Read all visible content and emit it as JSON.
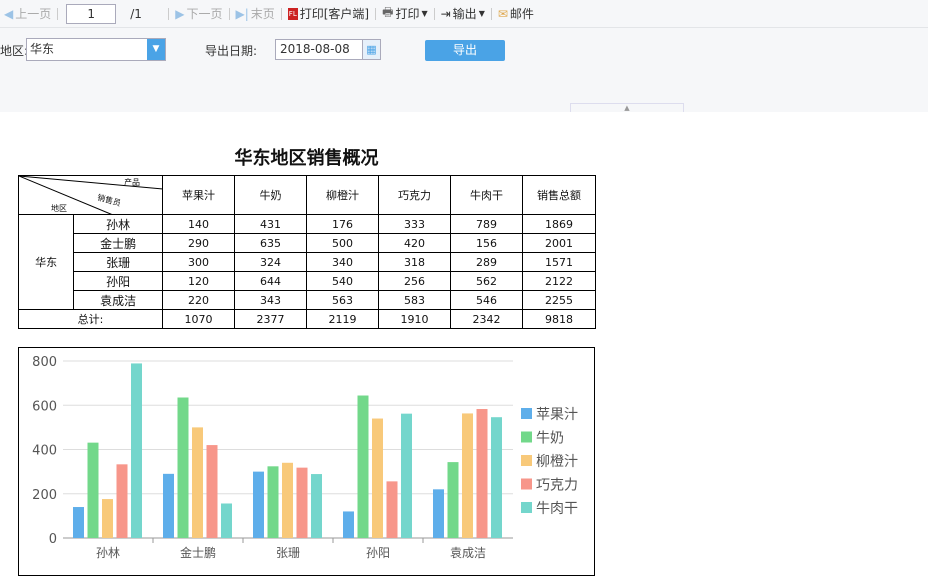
{
  "toolbar": {
    "prev": "上一页",
    "page": "1",
    "total": "/1",
    "next": "下一页",
    "last": "末页",
    "print_client": "打印[客户端]",
    "print": "打印",
    "export": "输出",
    "mail": "邮件"
  },
  "params": {
    "region_label": "地区:",
    "region_value": "华东",
    "date_label": "导出日期:",
    "date_value": "2018-08-08",
    "export_button": "导出"
  },
  "report": {
    "title": "华东地区销售概况",
    "corner": {
      "product": "产品",
      "salesperson": "销售员",
      "region": "地区"
    },
    "columns": [
      "苹果汁",
      "牛奶",
      "柳橙汁",
      "巧克力",
      "牛肉干",
      "销售总额"
    ],
    "region": "华东",
    "rows": [
      {
        "name": "孙林",
        "values": [
          "140",
          "431",
          "176",
          "333",
          "789",
          "1869"
        ]
      },
      {
        "name": "金士鹏",
        "values": [
          "290",
          "635",
          "500",
          "420",
          "156",
          "2001"
        ]
      },
      {
        "name": "张珊",
        "values": [
          "300",
          "324",
          "340",
          "318",
          "289",
          "1571"
        ]
      },
      {
        "name": "孙阳",
        "values": [
          "120",
          "644",
          "540",
          "256",
          "562",
          "2122"
        ]
      },
      {
        "name": "袁成洁",
        "values": [
          "220",
          "343",
          "563",
          "583",
          "546",
          "2255"
        ]
      }
    ],
    "total_label": "总计:",
    "totals": [
      "1070",
      "2377",
      "2119",
      "1910",
      "2342",
      "9818"
    ]
  },
  "chart_data": {
    "type": "bar",
    "categories": [
      "孙林",
      "金士鹏",
      "张珊",
      "孙阳",
      "袁成洁"
    ],
    "series": [
      {
        "name": "苹果汁",
        "color": "#5eaeea",
        "values": [
          140,
          290,
          300,
          120,
          220
        ]
      },
      {
        "name": "牛奶",
        "color": "#72d88a",
        "values": [
          431,
          635,
          324,
          644,
          343
        ]
      },
      {
        "name": "柳橙汁",
        "color": "#f8c97a",
        "values": [
          176,
          500,
          340,
          540,
          563
        ]
      },
      {
        "name": "巧克力",
        "color": "#f7968a",
        "values": [
          333,
          420,
          318,
          256,
          583
        ]
      },
      {
        "name": "牛肉干",
        "color": "#74d6cc",
        "values": [
          789,
          156,
          289,
          562,
          546
        ]
      }
    ],
    "yticks": [
      0,
      200,
      400,
      600,
      800
    ],
    "ylim": [
      0,
      800
    ],
    "grid": true,
    "legend": "right"
  }
}
